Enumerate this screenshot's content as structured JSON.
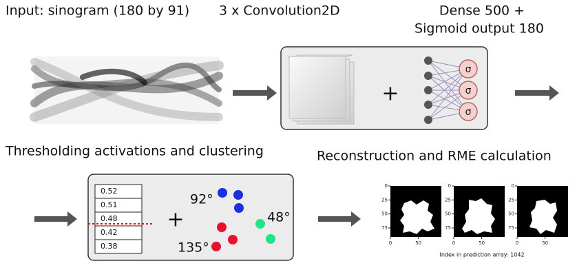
{
  "stages": {
    "input": {
      "title": "Input: sinogram (180 by 91)"
    },
    "conv": {
      "title": "3 x Convolution2D",
      "plus": "+",
      "sigmas": [
        "σ",
        "σ",
        "σ"
      ]
    },
    "dense": {
      "title_lines": [
        "Dense 500 +",
        "Sigmoid output 180"
      ]
    },
    "threshold": {
      "title": "Thresholding activations and clustering",
      "activations": [
        0.52,
        0.51,
        0.48,
        0.42,
        0.38
      ],
      "plus": "+",
      "cluster_labels": [
        "92°",
        "48°",
        "135°"
      ]
    },
    "reconstruction": {
      "title": "Reconstruction and RME calculation",
      "plots": [
        {
          "yticks": [
            "0",
            "25",
            "50",
            "75"
          ],
          "xticks": [
            "0",
            "50"
          ]
        },
        {
          "yticks": [
            "0",
            "25",
            "50",
            "75"
          ],
          "xticks": [
            "0",
            "50"
          ]
        },
        {
          "yticks": [
            "0",
            "25",
            "50",
            "75"
          ],
          "xticks": [
            "0",
            "50"
          ]
        }
      ],
      "caption": "Index in prediction array: 1042"
    }
  }
}
